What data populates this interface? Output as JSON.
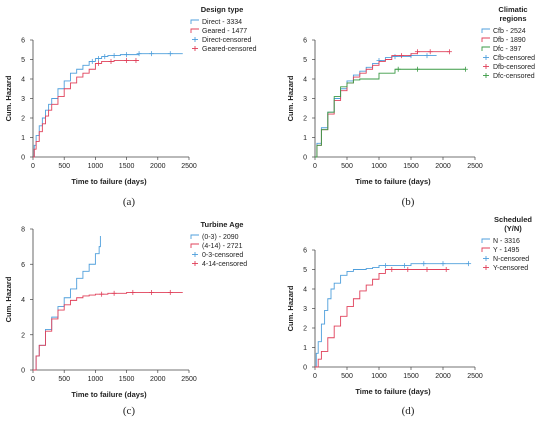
{
  "chart_data": [
    {
      "type": "line",
      "label": "(a)",
      "xlabel": "Time to failure (days)",
      "ylabel": "Cum. Hazard",
      "xlim": [
        0,
        2500
      ],
      "ylim": [
        0,
        6
      ],
      "xticks": [
        0,
        500,
        1000,
        1500,
        2000,
        2500
      ],
      "yticks": [
        0,
        1,
        2,
        3,
        4,
        5,
        6
      ],
      "legend": {
        "title": [
          "Design type"
        ],
        "position": "right",
        "items": [
          "Direct - 3334",
          "Geared - 1477",
          "Direct-censored",
          "Geared-censored"
        ]
      },
      "series": [
        {
          "name": "Direct - 3334",
          "color": "#4f9fdc",
          "points": [
            [
              0,
              0
            ],
            [
              20,
              0.6
            ],
            [
              50,
              1.1
            ],
            [
              100,
              1.6
            ],
            [
              150,
              2.0
            ],
            [
              200,
              2.4
            ],
            [
              250,
              2.7
            ],
            [
              300,
              3.0
            ],
            [
              400,
              3.5
            ],
            [
              500,
              3.9
            ],
            [
              600,
              4.3
            ],
            [
              700,
              4.5
            ],
            [
              800,
              4.7
            ],
            [
              900,
              4.9
            ],
            [
              1000,
              5.05
            ],
            [
              1100,
              5.15
            ],
            [
              1200,
              5.2
            ],
            [
              1400,
              5.25
            ],
            [
              1700,
              5.3
            ],
            [
              2000,
              5.3
            ],
            [
              2400,
              5.3
            ]
          ],
          "censored": [
            950,
            1050,
            1150,
            1300,
            1500,
            1700,
            1900,
            2200
          ]
        },
        {
          "name": "Geared - 1477",
          "color": "#e0405a",
          "points": [
            [
              0,
              0
            ],
            [
              20,
              0.4
            ],
            [
              50,
              0.8
            ],
            [
              100,
              1.3
            ],
            [
              150,
              1.7
            ],
            [
              200,
              2.1
            ],
            [
              250,
              2.4
            ],
            [
              300,
              2.7
            ],
            [
              400,
              3.1
            ],
            [
              500,
              3.5
            ],
            [
              600,
              3.8
            ],
            [
              700,
              4.1
            ],
            [
              800,
              4.3
            ],
            [
              900,
              4.5
            ],
            [
              1000,
              4.8
            ],
            [
              1100,
              4.9
            ],
            [
              1300,
              4.95
            ],
            [
              1700,
              4.95
            ]
          ],
          "censored": [
            1050,
            1250,
            1500,
            1650
          ]
        }
      ]
    },
    {
      "type": "line",
      "label": "(b)",
      "xlabel": "Time to failure (days)",
      "ylabel": "Cum. Hazard",
      "xlim": [
        0,
        2500
      ],
      "ylim": [
        0,
        6
      ],
      "xticks": [
        0,
        500,
        1000,
        1500,
        2000,
        2500
      ],
      "yticks": [
        0,
        1,
        2,
        3,
        4,
        5,
        6
      ],
      "legend": {
        "title": [
          "Climatic",
          "regions"
        ],
        "position": "right",
        "items": [
          "Cfb - 2524",
          "Dfb - 1890",
          "Dfc - 397",
          "Cfb-censored",
          "Dfb-censored",
          "Dfc-censored"
        ]
      },
      "series": [
        {
          "name": "Cfb - 2524",
          "color": "#4f9fdc",
          "points": [
            [
              0,
              0
            ],
            [
              30,
              0.7
            ],
            [
              100,
              1.5
            ],
            [
              200,
              2.3
            ],
            [
              300,
              3.0
            ],
            [
              400,
              3.5
            ],
            [
              500,
              3.9
            ],
            [
              600,
              4.2
            ],
            [
              700,
              4.4
            ],
            [
              800,
              4.6
            ],
            [
              900,
              4.8
            ],
            [
              1000,
              4.95
            ],
            [
              1100,
              5.1
            ],
            [
              1200,
              5.15
            ],
            [
              1500,
              5.2
            ],
            [
              1900,
              5.2
            ]
          ],
          "censored": [
            1000,
            1250,
            1500,
            1750
          ]
        },
        {
          "name": "Dfb - 1890",
          "color": "#e0405a",
          "points": [
            [
              0,
              0
            ],
            [
              30,
              0.6
            ],
            [
              100,
              1.4
            ],
            [
              200,
              2.2
            ],
            [
              300,
              2.9
            ],
            [
              400,
              3.4
            ],
            [
              500,
              3.8
            ],
            [
              600,
              4.1
            ],
            [
              700,
              4.3
            ],
            [
              800,
              4.5
            ],
            [
              900,
              4.7
            ],
            [
              1000,
              4.9
            ],
            [
              1100,
              5.0
            ],
            [
              1200,
              5.2
            ],
            [
              1500,
              5.3
            ],
            [
              1600,
              5.4
            ],
            [
              2100,
              5.4
            ]
          ],
          "censored": [
            1350,
            1600,
            1800,
            2100
          ]
        },
        {
          "name": "Dfc - 397",
          "color": "#3a9a45",
          "points": [
            [
              0,
              0
            ],
            [
              30,
              0.6
            ],
            [
              100,
              1.4
            ],
            [
              200,
              2.3
            ],
            [
              300,
              3.1
            ],
            [
              400,
              3.6
            ],
            [
              500,
              3.8
            ],
            [
              600,
              3.95
            ],
            [
              700,
              4.0
            ],
            [
              900,
              4.0
            ],
            [
              1000,
              4.3
            ],
            [
              1250,
              4.5
            ],
            [
              1600,
              4.5
            ],
            [
              2350,
              4.5
            ]
          ],
          "censored": [
            1300,
            1600,
            2350
          ]
        }
      ]
    },
    {
      "type": "line",
      "label": "(c)",
      "xlabel": "Time to failure (days)",
      "ylabel": "Cum. Hazard",
      "xlim": [
        0,
        2500
      ],
      "ylim": [
        0,
        8
      ],
      "xticks": [
        0,
        500,
        1000,
        1500,
        2000,
        2500
      ],
      "yticks": [
        0,
        2,
        4,
        6,
        8
      ],
      "legend": {
        "title": [
          "Turbine Age"
        ],
        "position": "right",
        "items": [
          "(0-3) - 2090",
          "(4-14) - 2721",
          "0-3-censored",
          "4-14-censored"
        ]
      },
      "series": [
        {
          "name": "(0-3) - 2090",
          "color": "#4f9fdc",
          "points": [
            [
              0,
              0
            ],
            [
              50,
              0.8
            ],
            [
              100,
              1.4
            ],
            [
              200,
              2.3
            ],
            [
              300,
              3.0
            ],
            [
              400,
              3.6
            ],
            [
              500,
              4.1
            ],
            [
              600,
              4.6
            ],
            [
              700,
              5.2
            ],
            [
              800,
              5.6
            ],
            [
              900,
              6.0
            ],
            [
              1000,
              6.6
            ],
            [
              1060,
              7.0
            ],
            [
              1080,
              7.6
            ]
          ],
          "censored": []
        },
        {
          "name": "(4-14) - 2721",
          "color": "#e0405a",
          "points": [
            [
              0,
              0
            ],
            [
              50,
              0.8
            ],
            [
              100,
              1.4
            ],
            [
              200,
              2.2
            ],
            [
              300,
              2.9
            ],
            [
              400,
              3.4
            ],
            [
              500,
              3.7
            ],
            [
              600,
              3.95
            ],
            [
              700,
              4.1
            ],
            [
              800,
              4.2
            ],
            [
              900,
              4.25
            ],
            [
              1000,
              4.3
            ],
            [
              1200,
              4.35
            ],
            [
              1500,
              4.4
            ],
            [
              2000,
              4.4
            ],
            [
              2400,
              4.4
            ]
          ],
          "censored": [
            1100,
            1300,
            1600,
            1900,
            2200
          ]
        }
      ]
    },
    {
      "type": "line",
      "label": "(d)",
      "xlabel": "Time to failure (days)",
      "ylabel": "Cum. Hazard",
      "xlim": [
        0,
        2500
      ],
      "ylim": [
        0,
        6
      ],
      "xticks": [
        0,
        500,
        1000,
        1500,
        2000,
        2500
      ],
      "yticks": [
        0,
        1,
        2,
        3,
        4,
        5,
        6
      ],
      "legend": {
        "title": [
          "Scheduled",
          "(Y/N)"
        ],
        "position": "right",
        "items": [
          "N - 3316",
          "Y - 1495",
          "N-censored",
          "Y-censored"
        ]
      },
      "series": [
        {
          "name": "N - 3316",
          "color": "#4f9fdc",
          "points": [
            [
              0,
              0
            ],
            [
              20,
              0.7
            ],
            [
              50,
              1.3
            ],
            [
              100,
              2.2
            ],
            [
              150,
              2.9
            ],
            [
              200,
              3.5
            ],
            [
              250,
              4.0
            ],
            [
              300,
              4.3
            ],
            [
              400,
              4.7
            ],
            [
              500,
              4.9
            ],
            [
              600,
              5.0
            ],
            [
              800,
              5.05
            ],
            [
              900,
              5.1
            ],
            [
              1000,
              5.2
            ],
            [
              1500,
              5.3
            ],
            [
              2400,
              5.3
            ]
          ],
          "censored": [
            1100,
            1400,
            1700,
            2000,
            2400
          ]
        },
        {
          "name": "Y - 1495",
          "color": "#e0405a",
          "points": [
            [
              0,
              0
            ],
            [
              50,
              0.4
            ],
            [
              100,
              0.8
            ],
            [
              200,
              1.5
            ],
            [
              300,
              2.1
            ],
            [
              400,
              2.6
            ],
            [
              500,
              3.1
            ],
            [
              600,
              3.5
            ],
            [
              700,
              3.9
            ],
            [
              800,
              4.2
            ],
            [
              900,
              4.5
            ],
            [
              1000,
              4.8
            ],
            [
              1100,
              5.0
            ],
            [
              1500,
              5.0
            ],
            [
              2100,
              5.0
            ]
          ],
          "censored": [
            1200,
            1450,
            1750,
            2050
          ]
        }
      ]
    }
  ]
}
